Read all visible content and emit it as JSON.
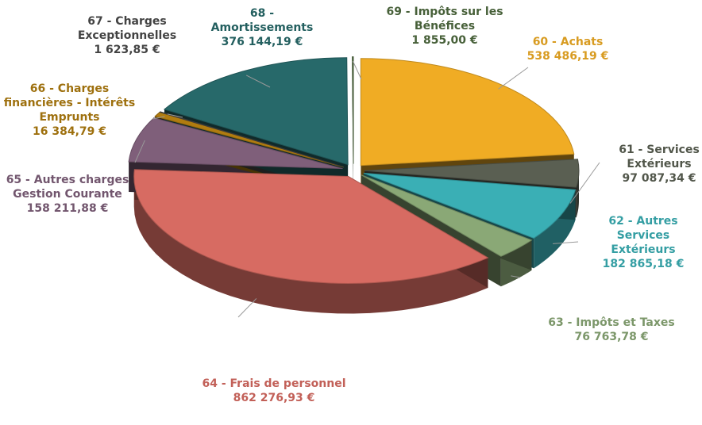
{
  "chart_data": {
    "type": "pie",
    "categories": [
      "60 - Achats",
      "61 - Services Extérieurs",
      "62 - Autres Services Extérieurs",
      "63 - Impôts et Taxes",
      "64 - Frais de personnel",
      "65 - Autres charges Gestion Courante",
      "66 - Charges financières - Intérêts Emprunts",
      "67 - Charges Exceptionnelles",
      "68 - Amortissements",
      "69 - Impôts sur les Bénéfices"
    ],
    "values": [
      538486.19,
      97087.34,
      182865.18,
      76763.78,
      862276.93,
      158211.88,
      16384.79,
      1623.85,
      376144.19,
      1855.0
    ],
    "value_labels": [
      "538 486,19 €",
      "97 087,34 €",
      "182 865,18 €",
      "76 763,78 €",
      "862 276,93 €",
      "158 211,88 €",
      "16 384,79 €",
      "1 623,85 €",
      "376 144,19 €",
      "1 855,00 €"
    ],
    "colors": [
      "#f0ac24",
      "#5a5f52",
      "#3aafb5",
      "#8aa876",
      "#d76b62",
      "#7f5f7a",
      "#b07c10",
      "#4a4a4a",
      "#27696a",
      "#4f6b3f"
    ]
  }
}
